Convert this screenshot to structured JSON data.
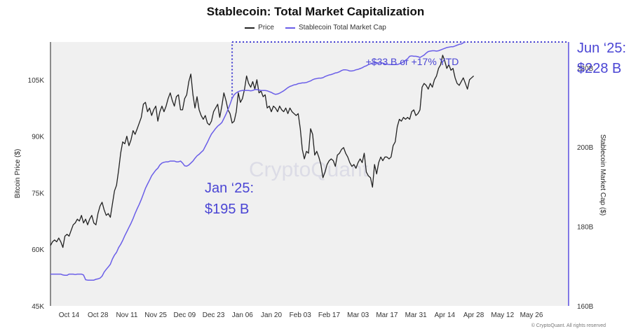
{
  "chart_data": {
    "type": "line",
    "title": "Stablecoin: Total Market Capitalization",
    "y_left_label": "Bitcoin Price ($)",
    "y_right_label": "Stablecoin Market Cap ($)",
    "y_left_ticks": [
      "45K",
      "60K",
      "75K",
      "90K",
      "105K"
    ],
    "y_right_ticks": [
      "160B",
      "180B",
      "200B",
      "220B"
    ],
    "y_left_range": [
      45000,
      115000
    ],
    "y_right_range": [
      160000000000,
      226500000000
    ],
    "x_ticks": [
      "Oct 14",
      "Oct 28",
      "Nov 11",
      "Nov 25",
      "Dec 09",
      "Dec 23",
      "Jan 06",
      "Jan 20",
      "Feb 03",
      "Feb 17",
      "Mar 03",
      "Mar 17",
      "Mar 31",
      "Apr 14",
      "Apr 28",
      "May 12",
      "May 26"
    ],
    "grid": false,
    "legend_position": "top-center",
    "series": [
      {
        "name": "Price",
        "axis": "left",
        "color": "#222222",
        "x_start": "2024-10-05",
        "values": [
          61000,
          62000,
          62500,
          62000,
          63000,
          62000,
          60500,
          63500,
          64000,
          63500,
          65000,
          66500,
          67000,
          68000,
          67500,
          69000,
          67000,
          68000,
          66500,
          68000,
          69000,
          67000,
          66500,
          69500,
          71500,
          72500,
          70500,
          69000,
          69500,
          68500,
          72000,
          75500,
          77000,
          81000,
          85500,
          88500,
          88000,
          90000,
          87500,
          89000,
          91500,
          90500,
          92000,
          93500,
          95000,
          98500,
          99000,
          96500,
          97500,
          95500,
          97000,
          98000,
          94000,
          96500,
          98000,
          96500,
          98000,
          100000,
          101500,
          99500,
          98000,
          100500,
          101000,
          97000,
          97000,
          100000,
          101000,
          104500,
          106500,
          101000,
          97500,
          100500,
          97000,
          95500,
          94500,
          95500,
          93500,
          93000,
          94000,
          96500,
          97500,
          98500,
          95000,
          98000,
          101500,
          99500,
          97000,
          96000,
          93500,
          94000,
          96500,
          101500,
          99000,
          100000,
          102500,
          106000,
          104000,
          103000,
          104500,
          102500,
          105000,
          101500,
          102000,
          100500,
          101000,
          97500,
          98000,
          96500,
          98000,
          97500,
          96500,
          98000,
          97000,
          96500,
          97500,
          96000,
          97500,
          96500,
          96000,
          95500,
          96000,
          92000,
          86500,
          84000,
          86000,
          85500,
          92000,
          90500,
          85000,
          86000,
          84500,
          82500,
          79000,
          80500,
          82500,
          83500,
          84000,
          83500,
          82000,
          85000,
          85500,
          86500,
          87000,
          85500,
          84500,
          83000,
          82000,
          82500,
          81500,
          83000,
          84000,
          83000,
          85500,
          80500,
          79500,
          79000,
          76500,
          82500,
          80000,
          83000,
          84500,
          83500,
          84500,
          84500,
          84000,
          84500,
          87500,
          88500,
          92500,
          94500,
          94000,
          95000,
          94500,
          95000,
          94500,
          96500,
          97000,
          95500,
          96000,
          97000,
          103000,
          104000,
          103500,
          102500,
          104000,
          103000,
          105000,
          106000,
          108000,
          109000,
          111500,
          110000,
          108000,
          109000,
          107500,
          108000,
          105500,
          104000,
          103500,
          104500,
          105500,
          104000,
          102500,
          105000,
          105500,
          106000
        ]
      },
      {
        "name": "Stablecoin Total Market Cap",
        "axis": "right",
        "color": "#6a5ee8",
        "x_start": "2024-10-05",
        "values": [
          168000000000,
          168000000000,
          168000000000,
          168000000000,
          168000000000,
          168000000000,
          167800000000,
          167700000000,
          167700000000,
          168000000000,
          168000000000,
          168000000000,
          167900000000,
          168000000000,
          168000000000,
          168000000000,
          167800000000,
          166600000000,
          166500000000,
          166500000000,
          166500000000,
          166500000000,
          166700000000,
          166800000000,
          167000000000,
          167500000000,
          168500000000,
          169200000000,
          169800000000,
          170500000000,
          171800000000,
          172800000000,
          173500000000,
          174700000000,
          175500000000,
          176500000000,
          177700000000,
          178700000000,
          179800000000,
          180800000000,
          182000000000,
          183300000000,
          184500000000,
          185600000000,
          186800000000,
          188200000000,
          189600000000,
          190700000000,
          191700000000,
          192800000000,
          193500000000,
          194200000000,
          194700000000,
          195500000000,
          196000000000,
          196200000000,
          196300000000,
          196300000000,
          196500000000,
          196500000000,
          196500000000,
          196300000000,
          196300000000,
          196500000000,
          196000000000,
          195300000000,
          195200000000,
          195500000000,
          196000000000,
          196500000000,
          197200000000,
          197800000000,
          198200000000,
          198700000000,
          199200000000,
          200200000000,
          201200000000,
          202300000000,
          203300000000,
          204000000000,
          204700000000,
          205300000000,
          205700000000,
          206200000000,
          207200000000,
          208300000000,
          209500000000,
          210800000000,
          212300000000,
          213200000000,
          213700000000,
          214000000000,
          214200000000,
          214300000000,
          214300000000,
          214300000000,
          214300000000,
          214200000000,
          214300000000,
          214500000000,
          214500000000,
          214400000000,
          214300000000,
          214300000000,
          214300000000,
          214200000000,
          214000000000,
          213800000000,
          213500000000,
          213300000000,
          213400000000,
          213600000000,
          213900000000,
          214200000000,
          214600000000,
          215000000000,
          215300000000,
          215500000000,
          215700000000,
          215800000000,
          216000000000,
          216100000000,
          216200000000,
          216200000000,
          216300000000,
          216500000000,
          216700000000,
          217000000000,
          217200000000,
          217300000000,
          217400000000,
          217400000000,
          217500000000,
          217800000000,
          218000000000,
          218200000000,
          218300000000,
          218500000000,
          218700000000,
          218800000000,
          219000000000,
          219300000000,
          219500000000,
          219500000000,
          219400000000,
          219200000000,
          219200000000,
          219300000000,
          219500000000,
          219600000000,
          219800000000,
          220000000000,
          220300000000,
          220500000000,
          220800000000,
          221000000000,
          221200000000,
          221200000000,
          221300000000,
          221200000000,
          221200000000,
          221200000000,
          221000000000,
          220900000000,
          220800000000,
          220800000000,
          220800000000,
          220800000000,
          220800000000,
          221000000000,
          221200000000,
          221500000000,
          221900000000,
          222300000000,
          222900000000,
          223000000000,
          222900000000,
          222900000000,
          222800000000,
          222600000000,
          222900000000,
          223200000000,
          223700000000,
          224100000000,
          224200000000,
          224300000000,
          224300000000,
          224200000000,
          224300000000,
          224500000000,
          224700000000,
          224900000000,
          225100000000,
          225200000000,
          225300000000,
          225300000000,
          225500000000,
          225700000000,
          225900000000,
          226000000000,
          226300000000,
          226500000000
        ]
      }
    ],
    "annotations": {
      "start_label": "Jan ‘25:",
      "start_value": "$195 B",
      "end_label": "Jun ‘25:",
      "end_value": "$228 B",
      "delta": "+$33 B or +17% YTD"
    },
    "watermark": "CryptoQuant",
    "footer": "© CryptoQuant. All rights reserved"
  }
}
